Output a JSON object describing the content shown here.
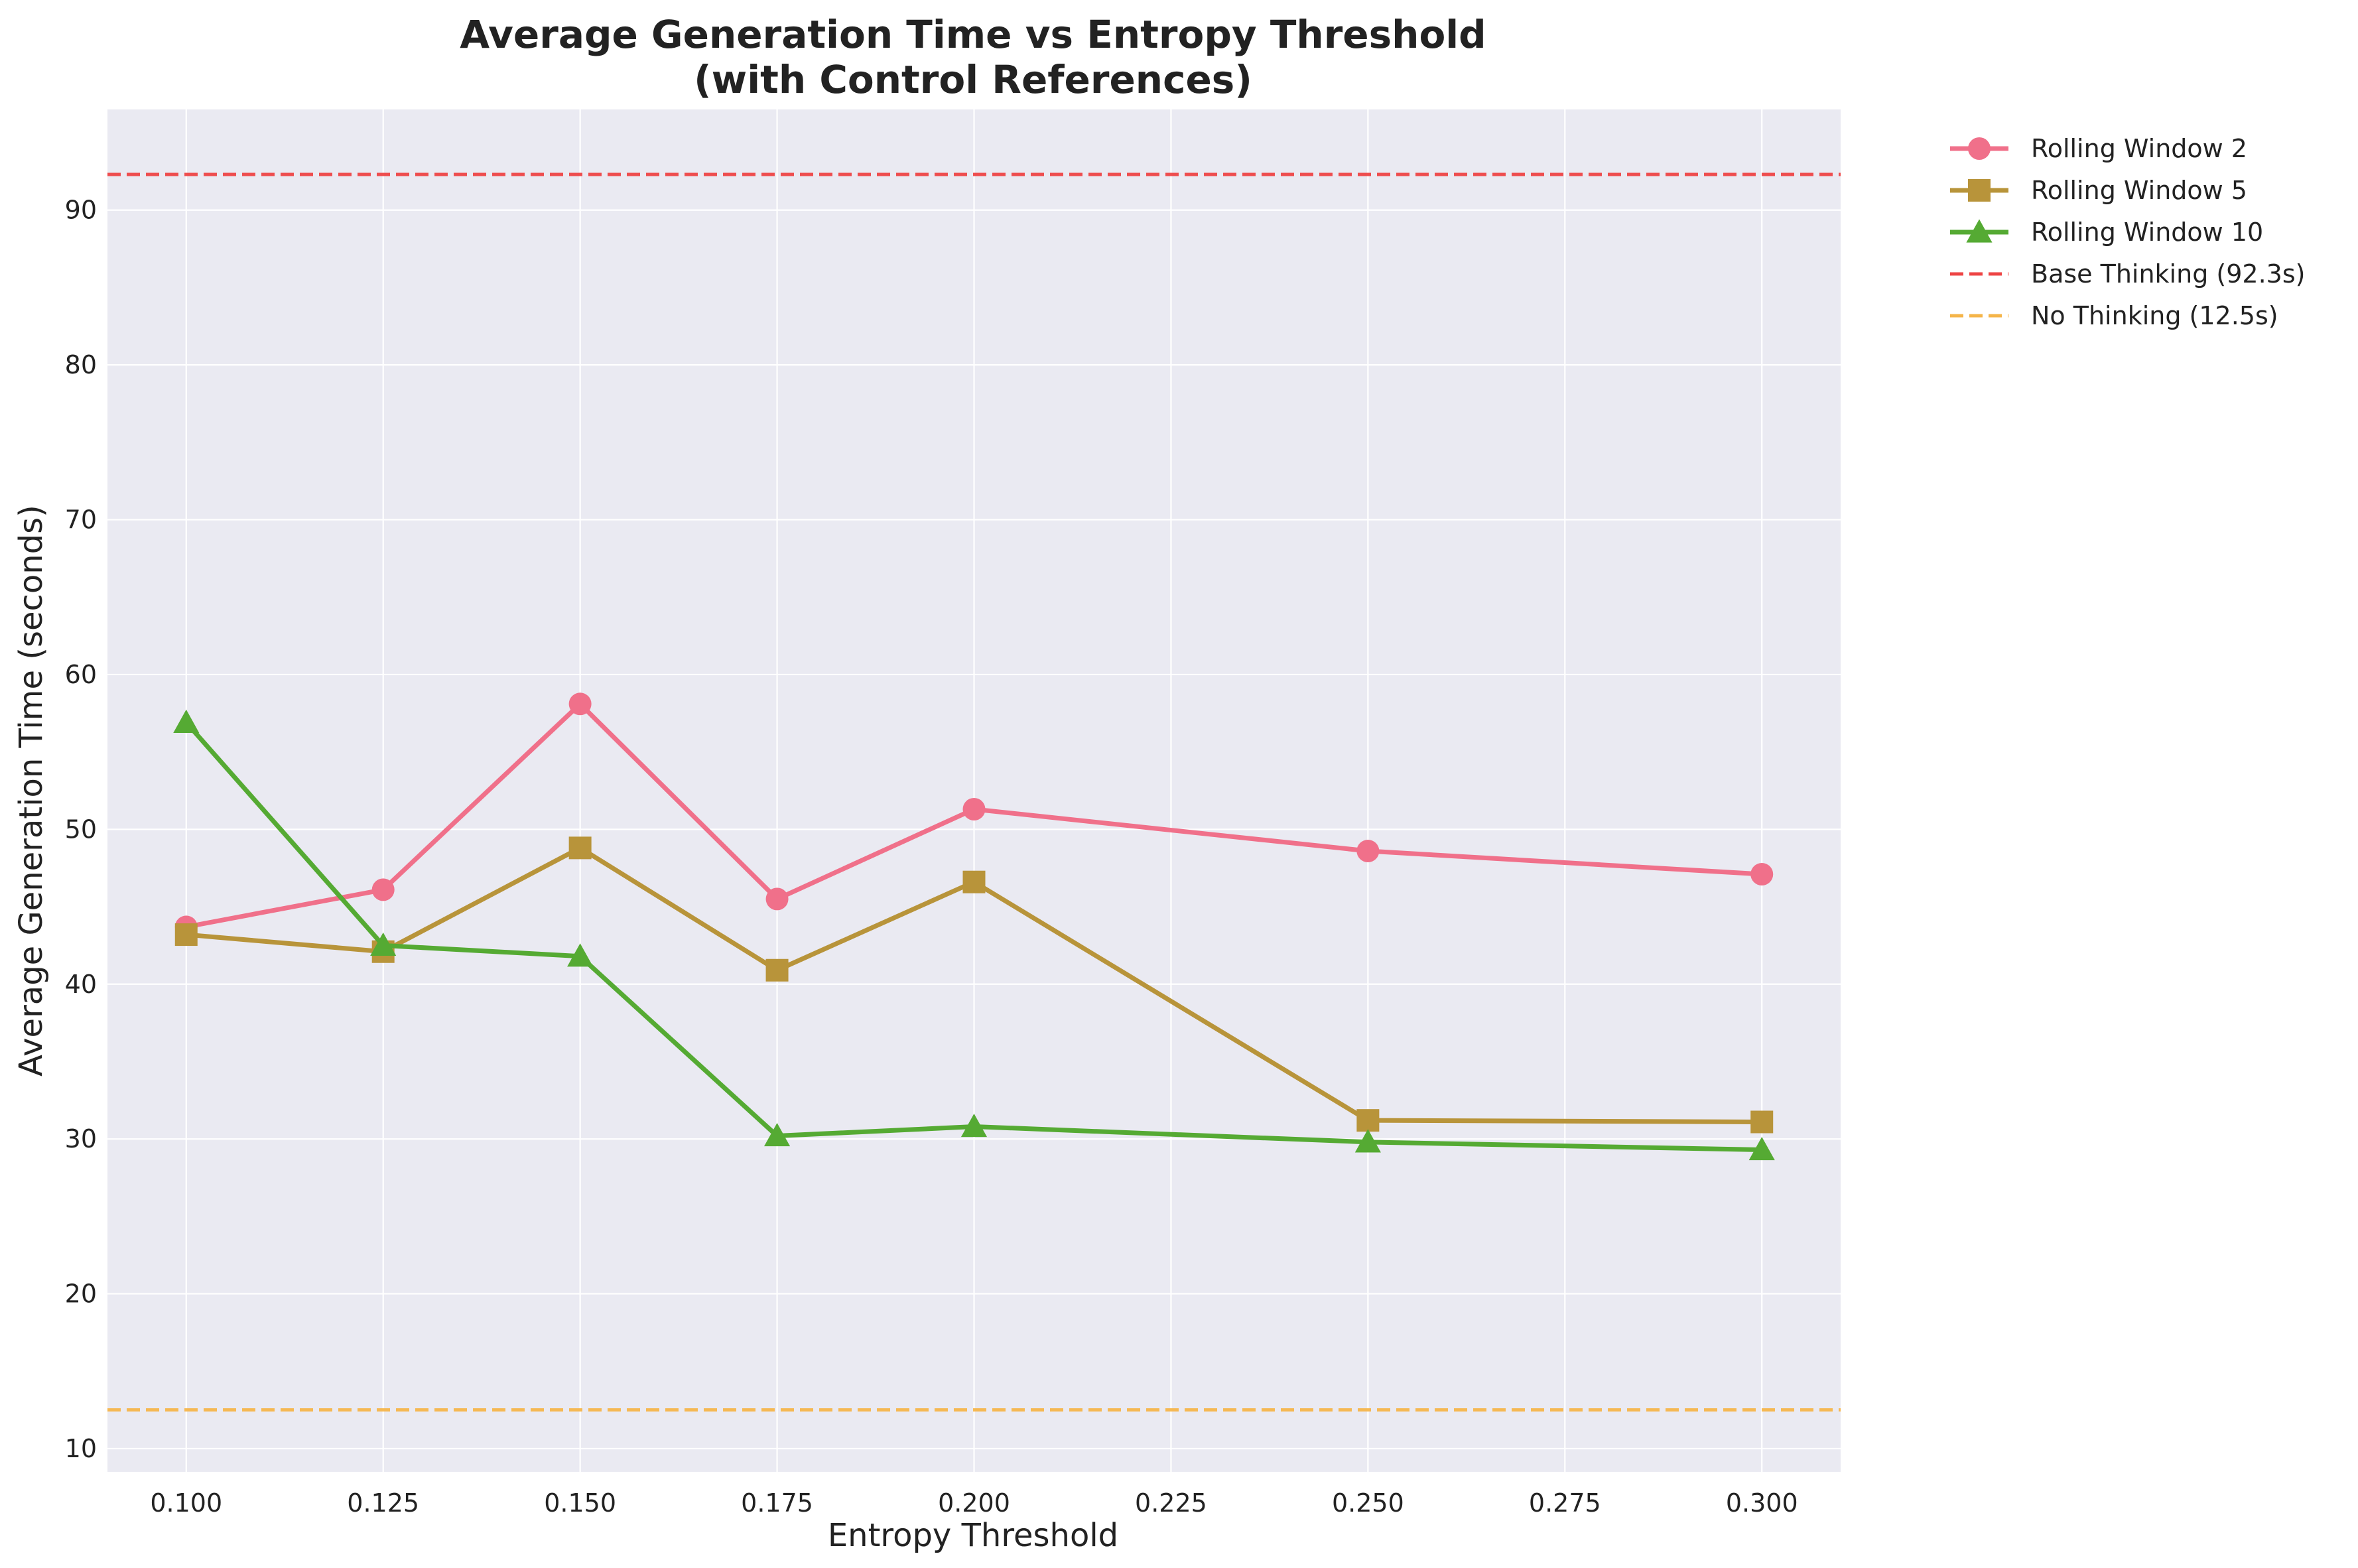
{
  "chart_data": {
    "type": "line",
    "title": "Average Generation Time vs Entropy Threshold",
    "subtitle": "(with Control References)",
    "xlabel": "Entropy Threshold",
    "ylabel": "Average Generation Time (seconds)",
    "xlim": [
      0.09,
      0.31
    ],
    "ylim": [
      8.5,
      96.5
    ],
    "xticks": [
      "0.100",
      "0.125",
      "0.150",
      "0.175",
      "0.200",
      "0.225",
      "0.250",
      "0.275",
      "0.300"
    ],
    "yticks": [
      "10",
      "20",
      "30",
      "40",
      "50",
      "60",
      "70",
      "80",
      "90"
    ],
    "grid": true,
    "legend_position": "outside-top-right",
    "series": [
      {
        "name": "Rolling Window 2",
        "color": "#f0708a",
        "marker": "circle",
        "x": [
          0.1,
          0.125,
          0.15,
          0.175,
          0.2,
          0.25,
          0.3
        ],
        "y": [
          43.7,
          46.1,
          58.1,
          45.5,
          51.3,
          48.6,
          47.1
        ]
      },
      {
        "name": "Rolling Window 5",
        "color": "#b8943a",
        "marker": "square",
        "x": [
          0.1,
          0.125,
          0.15,
          0.175,
          0.2,
          0.25,
          0.3
        ],
        "y": [
          43.2,
          42.1,
          48.8,
          40.9,
          46.6,
          31.2,
          31.1
        ]
      },
      {
        "name": "Rolling Window 10",
        "color": "#55aa33",
        "marker": "triangle",
        "x": [
          0.1,
          0.125,
          0.15,
          0.175,
          0.2,
          0.25,
          0.3
        ],
        "y": [
          56.9,
          42.5,
          41.8,
          30.2,
          30.8,
          29.8,
          29.3
        ]
      }
    ],
    "reference_lines": [
      {
        "name": "Base Thinking (92.3s)",
        "value": 92.3,
        "color": "#ee4444",
        "style": "dashed"
      },
      {
        "name": "No Thinking (12.5s)",
        "value": 12.5,
        "color": "#f5b54a",
        "style": "dashed"
      }
    ]
  },
  "colors": {
    "plot_background": "#eaeaf2",
    "grid": "#ffffff",
    "text": "#222222"
  }
}
